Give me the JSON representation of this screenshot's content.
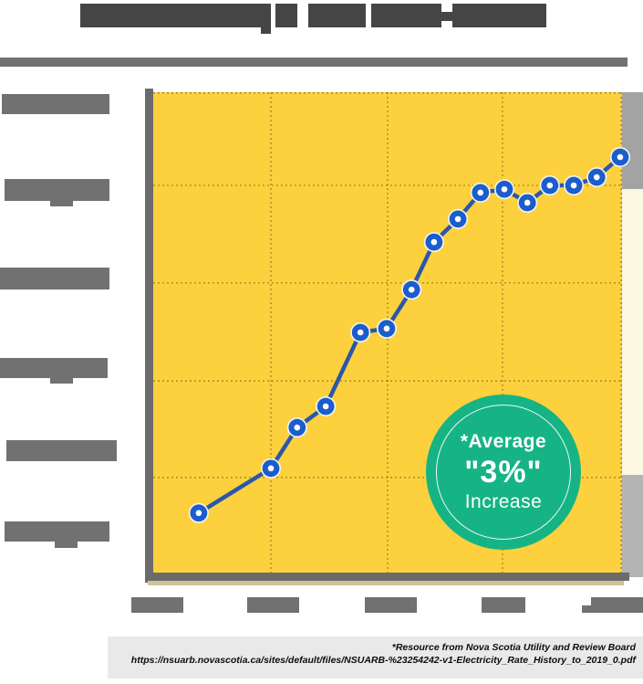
{
  "header": {
    "title_state": "REDACTED",
    "note": "Title text is blacked out with solid dark blocks in the source image"
  },
  "chart_data": {
    "type": "line",
    "title": "REDACTED (blacked-out block text)",
    "xlabel": "",
    "ylabel": "",
    "x_tick_labels": [
      "REDACTED",
      "REDACTED",
      "REDACTED",
      "REDACTED",
      "REDACTED"
    ],
    "x_tick_positions_pct": [
      0.9,
      25.6,
      50.7,
      74.7,
      98.9
    ],
    "y_tick_labels": [
      "REDACTED",
      "REDACTED",
      "REDACTED",
      "REDACTED",
      "REDACTED",
      "REDACTED"
    ],
    "grid": {
      "style": "dotted",
      "vlines_pct": [
        25.1,
        50.0,
        74.5
      ],
      "hlines_pct_from_top": [
        19.4,
        39.7,
        60.1,
        80.2
      ]
    },
    "plot_bg": "#fcd13d",
    "series": [
      {
        "name": "electricity-rate-trend",
        "color": "#2b57ab",
        "marker": "circle-white-center",
        "marker_fill": "#1b5dcb",
        "points_pct": [
          [
            9.7,
            12.4
          ],
          [
            25.1,
            21.7
          ],
          [
            30.7,
            30.2
          ],
          [
            36.8,
            34.6
          ],
          [
            44.2,
            50.0
          ],
          [
            49.8,
            50.8
          ],
          [
            55.1,
            58.9
          ],
          [
            59.9,
            68.8
          ],
          [
            65.0,
            73.6
          ],
          [
            69.8,
            79.1
          ],
          [
            74.9,
            79.8
          ],
          [
            79.8,
            77.0
          ],
          [
            84.6,
            80.6
          ],
          [
            89.7,
            80.6
          ],
          [
            94.6,
            82.3
          ],
          [
            99.6,
            86.5
          ]
        ]
      }
    ],
    "annotation_badge": {
      "shape": "circle",
      "bg": "#16b484",
      "lines": [
        "*Average",
        "\"3%\"",
        "Increase"
      ]
    },
    "note": "Axis tick labels and chart title are redacted (solid gray blocks) in the source image. points_pct are x/y positions as percent of the yellow plot area, y measured up from the bottom axis."
  },
  "footer": {
    "line1": "*Resource from Nova Scotia Utility and Review Board",
    "line2": "https://nsuarb.novascotia.ca/sites/default/files/NSUARB-%23254242-v1-Electricity_Rate_History_to_2019_0.pdf"
  },
  "colors": {
    "plot_yellow": "#fcd13d",
    "line_blue": "#2b57ab",
    "dot_blue": "#1b5dcb",
    "badge_green": "#16b484",
    "redaction_dark": "#454545",
    "redaction_gray": "#717171",
    "axis_gray": "#6b6b6b",
    "footer_bg": "#e9e9e9"
  }
}
